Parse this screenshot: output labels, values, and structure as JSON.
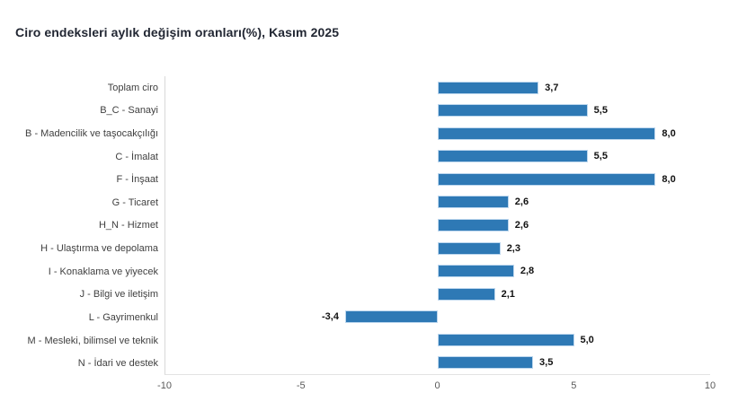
{
  "chart_data": {
    "type": "bar",
    "orientation": "horizontal",
    "title": "Ciro endeksleri aylık değişim oranları(%), Kasım 2025",
    "categories": [
      "Toplam ciro",
      "B_C - Sanayi",
      "B - Madencilik ve taşocakçılığı",
      "C - İmalat",
      "F - İnşaat",
      "G - Ticaret",
      "H_N - Hizmet",
      "H - Ulaştırma ve depolama",
      "I - Konaklama ve yiyecek",
      "J - Bilgi ve iletişim",
      "L - Gayrimenkul",
      "M - Mesleki, bilimsel ve teknik",
      "N - İdari ve destek"
    ],
    "values": [
      3.7,
      5.5,
      8.0,
      5.5,
      8.0,
      2.6,
      2.6,
      2.3,
      2.8,
      2.1,
      -3.4,
      5.0,
      3.5
    ],
    "value_labels": [
      "3,7",
      "5,5",
      "8,0",
      "5,5",
      "8,0",
      "2,6",
      "2,6",
      "2,3",
      "2,8",
      "2,1",
      "-3,4",
      "5,0",
      "3,5"
    ],
    "xlabel": "",
    "ylabel": "",
    "xlim": [
      -10,
      10
    ],
    "xticks": [
      "-10",
      "-5",
      "0",
      "5",
      "10"
    ],
    "xtick_values": [
      -10,
      -5,
      0,
      5,
      10
    ],
    "grid": false,
    "legend_position": "none",
    "bar_color": "#2e79b5",
    "bar_border_color": "#bdd7ee",
    "title_color": "#222733",
    "category_label_color": "#404040",
    "tick_label_color": "#595959",
    "axis_line_color": "#d9d9d9"
  }
}
